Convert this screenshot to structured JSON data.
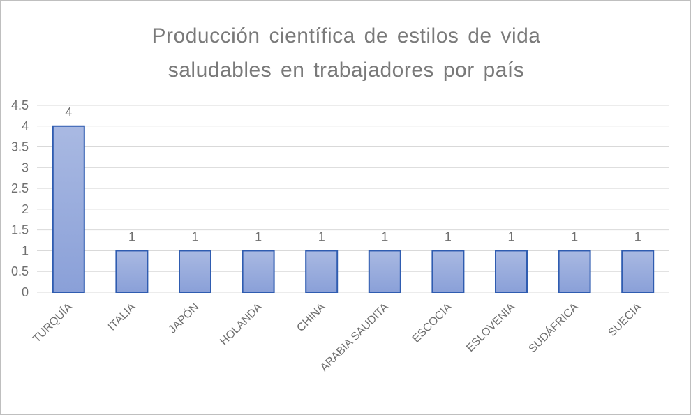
{
  "chart_data": {
    "type": "bar",
    "title_lines": [
      "Producción científica de estilos de vida",
      "saludables en trabajadores por país"
    ],
    "categories": [
      "TURQUÍA",
      "ITALIA",
      "JAPÓN",
      "HOLANDA",
      "CHINA",
      "ARABIA SAUDITA",
      "ESCOCIA",
      "ESLOVENIA",
      "SUDÁFRICA",
      "SUECIA"
    ],
    "values": [
      4,
      1,
      1,
      1,
      1,
      1,
      1,
      1,
      1,
      1
    ],
    "data_labels": [
      "4",
      "1",
      "1",
      "1",
      "1",
      "1",
      "1",
      "1",
      "1",
      "1"
    ],
    "y_ticks": [
      "0",
      "0.5",
      "1",
      "1.5",
      "2",
      "2.5",
      "3",
      "3.5",
      "4",
      "4.5"
    ],
    "ylim": [
      0,
      4.5
    ],
    "grid": true,
    "legend": "none",
    "colors": {
      "bar_fill_top": "#a9b9e2",
      "bar_fill_bottom": "#8aa0d8",
      "bar_stroke": "#2f5cb0",
      "grid": "#d9d9d9",
      "text": "#6f6f6f"
    }
  }
}
